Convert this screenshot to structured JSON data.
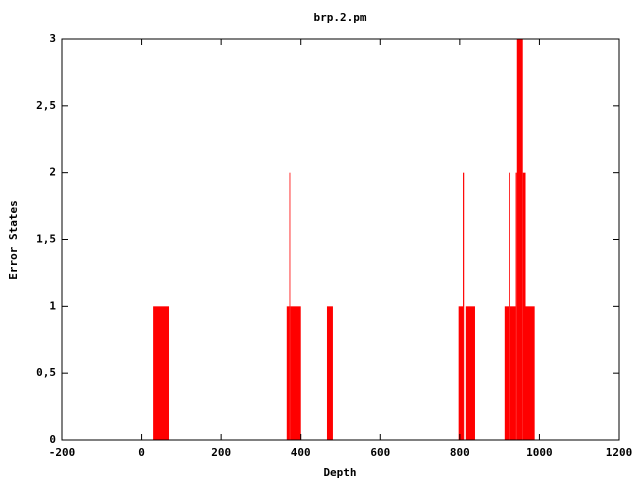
{
  "chart_data": {
    "type": "histogram",
    "title": "brp.2.pm",
    "x_label": "Depth",
    "y_label": "Error States",
    "bins": [
      29,
      69,
      365,
      372,
      374,
      400,
      466,
      481,
      797,
      808,
      811,
      815,
      838,
      913,
      924,
      926,
      940,
      943,
      958,
      965,
      988
    ],
    "values": [
      1,
      0,
      1,
      2,
      1,
      0,
      1,
      0,
      1,
      2,
      0,
      1,
      0,
      1,
      2,
      1,
      2,
      3,
      2,
      1
    ],
    "color": "#ff0000",
    "xlim": [
      -200,
      1200
    ],
    "xticks": [
      -200,
      0,
      200,
      400,
      600,
      800,
      1000,
      1200
    ],
    "ylim": [
      0,
      3
    ],
    "yticks": [
      0,
      {
        "value": 0.5,
        "label": "0,5"
      },
      1,
      {
        "value": 1.5,
        "label": "1,5"
      },
      2,
      {
        "value": 2.5,
        "label": "2,5"
      },
      3
    ],
    "grid": false
  }
}
